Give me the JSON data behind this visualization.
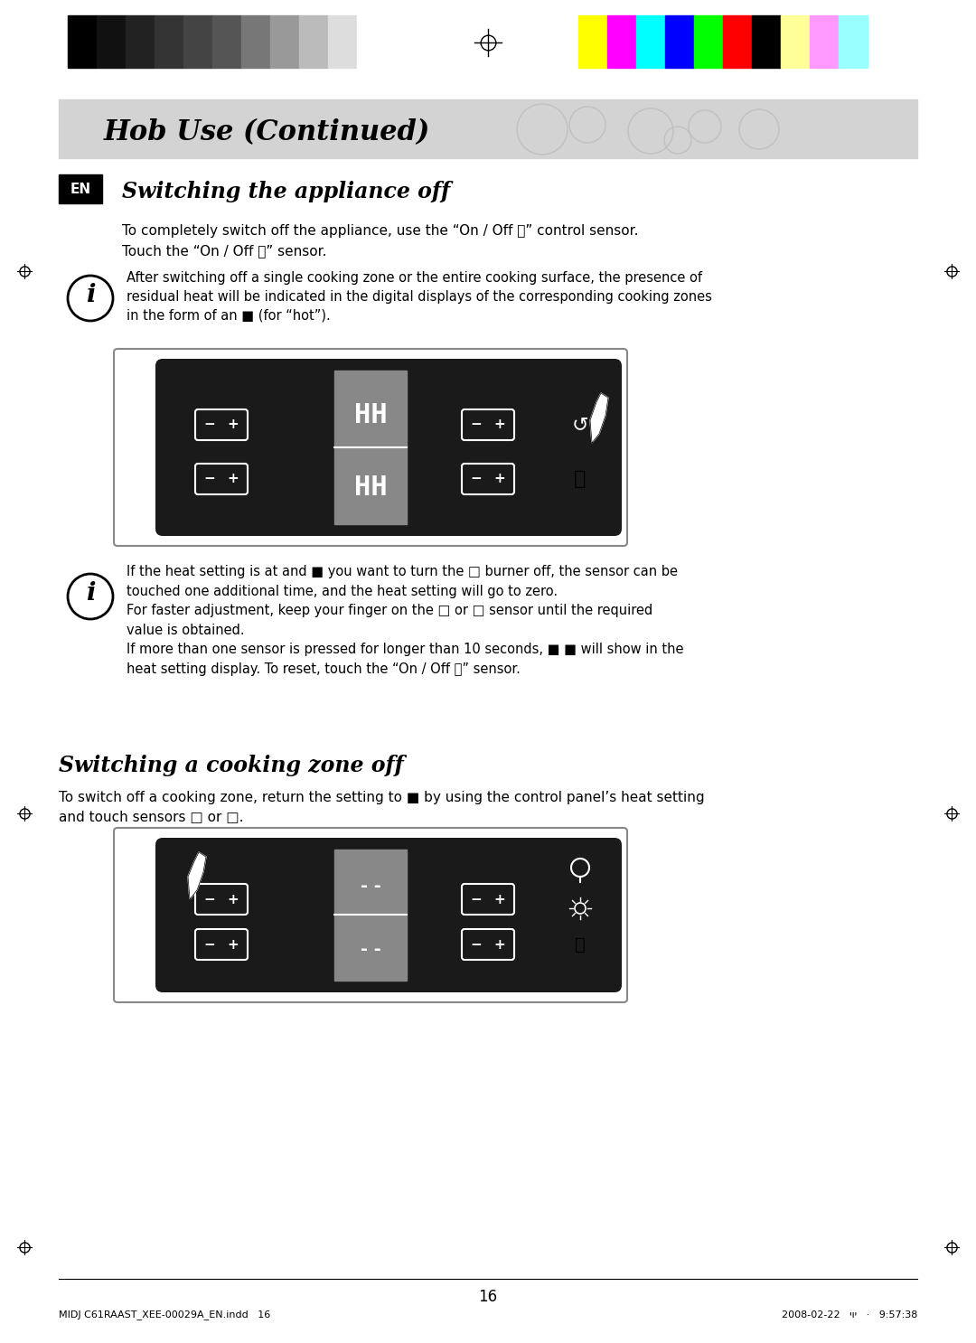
{
  "page_bg": "#ffffff",
  "header_bg": "#d3d3d3",
  "header_title": "Hob Use (Continued)",
  "section1_title": "Switching the appliance off",
  "section1_text1": "To completely switch off the appliance, use the “On / Off ⎉” control sensor.",
  "section1_text2": "Touch the “On / Off ⎉” sensor.",
  "info1_text": "After switching off a single cooking zone or the entire cooking surface, the presence of\nresidual heat will be indicated in the digital displays of the corresponding cooking zones\nin the form of an ■ (for “hot”).",
  "info2_text": "If the heat setting is at and ■ you want to turn the □ burner off, the sensor can be\ntouched one additional time, and the heat setting will go to zero.\nFor faster adjustment, keep your finger on the □ or □ sensor until the required\nvalue is obtained.\nIf more than one sensor is pressed for longer than 10 seconds, ■ ■ will show in the\nheat setting display. To reset, touch the “On / Off ⎉” sensor.",
  "section2_title": "Switching a cooking zone off",
  "section2_text1": "To switch off a cooking zone, return the setting to ■ by using the control panel’s heat setting\nand touch sensors □ or □.",
  "footer_text": "16",
  "footer_file": "MIDJ C61RAAST_XEE-00029A_EN.indd   16",
  "footer_date": "2008-02-22   יוי   ·   9:57:38",
  "panel_bg": "#1a1a1a",
  "panel_highlight": "#555555",
  "display_color": "#888888"
}
